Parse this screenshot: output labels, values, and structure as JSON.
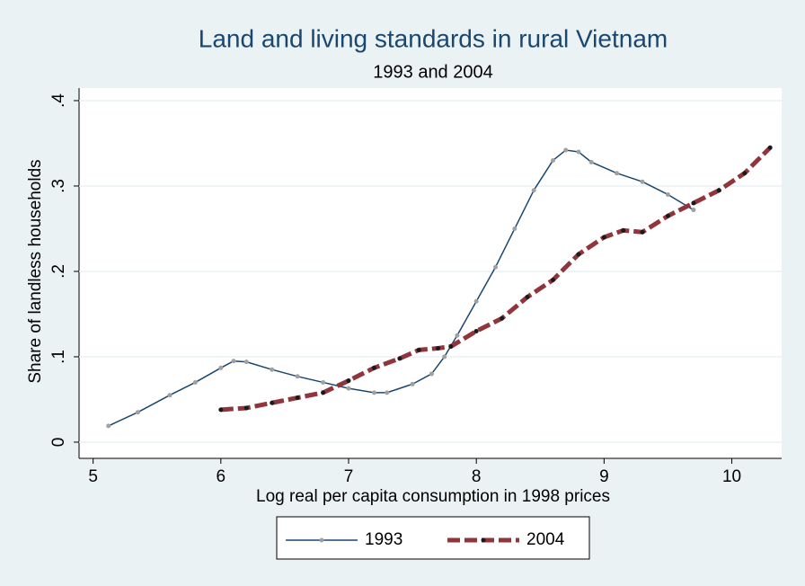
{
  "chart_data": {
    "type": "line",
    "title": "Land and living standards in rural Vietnam",
    "subtitle": "1993 and 2004",
    "x_label": "Log real per capita consumption in 1998 prices",
    "y_label": "Share of landless households",
    "xlim": [
      4.89,
      10.39
    ],
    "xticks": [
      5,
      6,
      7,
      8,
      9,
      10
    ],
    "ylim": [
      -0.019,
      0.4147
    ],
    "yticks": [
      0,
      {
        "value": 0.1,
        "label": ".1"
      },
      {
        "value": 0.2,
        "label": ".2"
      },
      {
        "value": 0.3,
        "label": ".3"
      },
      {
        "value": 0.4,
        "label": ".4"
      }
    ],
    "grid": true,
    "legend": "bottom",
    "series": [
      {
        "name": "1993",
        "color": "#1a476f",
        "marker_color": "#a0a0a0",
        "dashed": false,
        "x": [
          5.12,
          5.35,
          5.6,
          5.8,
          6.0,
          6.1,
          6.2,
          6.4,
          6.6,
          6.8,
          7.0,
          7.2,
          7.3,
          7.5,
          7.65,
          7.75,
          7.85,
          8.0,
          8.15,
          8.3,
          8.45,
          8.6,
          8.7,
          8.8,
          8.9,
          9.1,
          9.3,
          9.5,
          9.7
        ],
        "values": [
          0.019,
          0.035,
          0.055,
          0.07,
          0.087,
          0.095,
          0.094,
          0.085,
          0.077,
          0.07,
          0.063,
          0.058,
          0.058,
          0.068,
          0.08,
          0.1,
          0.125,
          0.165,
          0.205,
          0.25,
          0.295,
          0.33,
          0.342,
          0.34,
          0.328,
          0.315,
          0.305,
          0.29,
          0.272
        ]
      },
      {
        "name": "2004",
        "color": "#90353b",
        "marker_color": "#1a1a1a",
        "dashed": true,
        "x": [
          6.0,
          6.2,
          6.4,
          6.6,
          6.8,
          7.0,
          7.2,
          7.4,
          7.55,
          7.7,
          7.8,
          8.0,
          8.2,
          8.4,
          8.6,
          8.8,
          9.0,
          9.15,
          9.3,
          9.5,
          9.7,
          9.9,
          10.1,
          10.3
        ],
        "values": [
          0.038,
          0.04,
          0.046,
          0.052,
          0.058,
          0.072,
          0.087,
          0.098,
          0.108,
          0.11,
          0.112,
          0.13,
          0.145,
          0.17,
          0.19,
          0.22,
          0.24,
          0.248,
          0.246,
          0.265,
          0.28,
          0.295,
          0.315,
          0.345
        ]
      }
    ]
  }
}
